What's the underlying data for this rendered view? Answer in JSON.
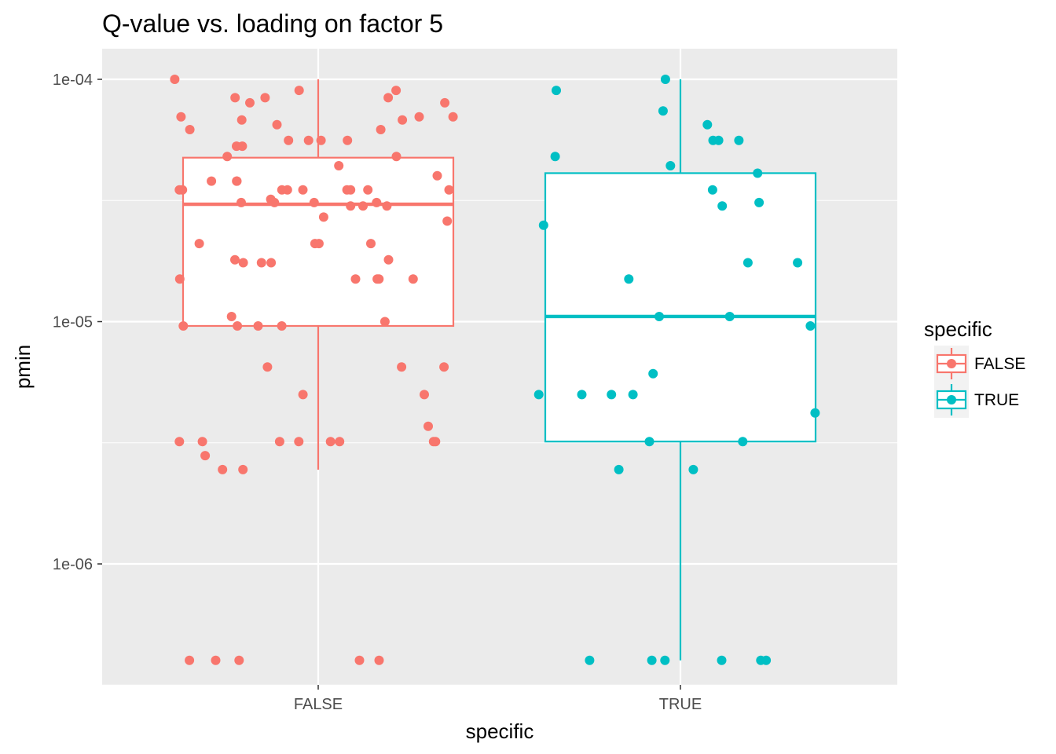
{
  "chart_data": {
    "type": "boxplot",
    "title": "Q-value vs. loading on factor 5",
    "xlabel": "specific",
    "ylabel": "pmin",
    "y_scale": "log10",
    "ylim": [
      2.8e-07,
      0.00015
    ],
    "grid": true,
    "legend": {
      "title": "specific",
      "placement": "right"
    },
    "categories": [
      "FALSE",
      "TRUE"
    ],
    "y_ticks": [
      {
        "value": 0.0001,
        "label": "1e-04"
      },
      {
        "value": 1e-05,
        "label": "1e-05"
      },
      {
        "value": 1e-06,
        "label": "1e-06"
      }
    ],
    "series": [
      {
        "name": "FALSE",
        "color": "#f8766d",
        "box": {
          "whisker_low": 2.45e-06,
          "q1": 9.6e-06,
          "median": 3.05e-05,
          "q3": 4.75e-05,
          "whisker_high": 0.0001
        },
        "points": [
          [
            0.0,
            0.0001
          ],
          [
            0.0,
            9e-05
          ],
          [
            0.0,
            9e-05
          ],
          [
            0.0,
            8.4e-05
          ],
          [
            0.0,
            8.4e-05
          ],
          [
            0.0,
            8.4e-05
          ],
          [
            0.0,
            8e-05
          ],
          [
            0.0,
            8e-05
          ],
          [
            0.0,
            7e-05
          ],
          [
            0.0,
            7e-05
          ],
          [
            0.0,
            7e-05
          ],
          [
            0.0,
            6.8e-05
          ],
          [
            0.0,
            6.8e-05
          ],
          [
            0.0,
            6.5e-05
          ],
          [
            0.0,
            6.2e-05
          ],
          [
            0.0,
            6.2e-05
          ],
          [
            0.0,
            5.6e-05
          ],
          [
            0.0,
            5.6e-05
          ],
          [
            0.0,
            5.6e-05
          ],
          [
            0.0,
            5.6e-05
          ],
          [
            0.0,
            5.3e-05
          ],
          [
            0.0,
            5.3e-05
          ],
          [
            0.0,
            4.8e-05
          ],
          [
            0.0,
            4.8e-05
          ],
          [
            0.0,
            4.4e-05
          ],
          [
            0.0,
            4e-05
          ],
          [
            0.0,
            3.8e-05
          ],
          [
            0.0,
            3.8e-05
          ],
          [
            0.0,
            3.8e-05
          ],
          [
            0.0,
            3.5e-05
          ],
          [
            0.0,
            3.5e-05
          ],
          [
            0.0,
            3.5e-05
          ],
          [
            0.0,
            3.5e-05
          ],
          [
            0.0,
            3.5e-05
          ],
          [
            0.0,
            3.5e-05
          ],
          [
            0.0,
            3.5e-05
          ],
          [
            0.0,
            3.5e-05
          ],
          [
            0.0,
            3.5e-05
          ],
          [
            0.0,
            3.2e-05
          ],
          [
            0.0,
            3.1e-05
          ],
          [
            0.0,
            3.1e-05
          ],
          [
            0.0,
            3.1e-05
          ],
          [
            0.0,
            3.1e-05
          ],
          [
            0.0,
            3e-05
          ],
          [
            0.0,
            3e-05
          ],
          [
            0.0,
            3e-05
          ],
          [
            0.0,
            2.7e-05
          ],
          [
            0.0,
            2.6e-05
          ],
          [
            0.0,
            2.1e-05
          ],
          [
            0.0,
            2.1e-05
          ],
          [
            0.0,
            2.1e-05
          ],
          [
            0.0,
            2.1e-05
          ],
          [
            0.0,
            1.8e-05
          ],
          [
            0.0,
            1.8e-05
          ],
          [
            0.0,
            1.75e-05
          ],
          [
            0.0,
            1.75e-05
          ],
          [
            0.0,
            1.75e-05
          ],
          [
            0.0,
            1.5e-05
          ],
          [
            0.0,
            1.5e-05
          ],
          [
            0.0,
            1.5e-05
          ],
          [
            0.0,
            1.5e-05
          ],
          [
            0.0,
            1.5e-05
          ],
          [
            0.0,
            1.05e-05
          ],
          [
            0.0,
            1e-05
          ],
          [
            0.0,
            9.6e-06
          ],
          [
            0.0,
            9.6e-06
          ],
          [
            0.0,
            9.6e-06
          ],
          [
            0.0,
            9.6e-06
          ],
          [
            0.0,
            6.5e-06
          ],
          [
            0.0,
            6.5e-06
          ],
          [
            0.0,
            6.5e-06
          ],
          [
            0.0,
            5e-06
          ],
          [
            0.0,
            5e-06
          ],
          [
            0.0,
            3.7e-06
          ],
          [
            0.0,
            3.2e-06
          ],
          [
            0.0,
            3.2e-06
          ],
          [
            0.0,
            3.2e-06
          ],
          [
            0.0,
            3.2e-06
          ],
          [
            0.0,
            3.2e-06
          ],
          [
            0.0,
            3.2e-06
          ],
          [
            0.0,
            3.2e-06
          ],
          [
            0.0,
            3.2e-06
          ],
          [
            0.0,
            2.8e-06
          ],
          [
            0.0,
            2.45e-06
          ],
          [
            0.0,
            2.45e-06
          ],
          [
            0.0,
            4e-07
          ],
          [
            0.0,
            4e-07
          ],
          [
            0.0,
            4e-07
          ],
          [
            0.0,
            4e-07
          ],
          [
            0.0,
            4e-07
          ]
        ]
      },
      {
        "name": "TRUE",
        "color": "#00bfc4",
        "box": {
          "whisker_low": 4e-07,
          "q1": 3.2e-06,
          "median": 1.05e-05,
          "q3": 4.1e-05,
          "whisker_high": 0.0001
        },
        "points": [
          [
            1.0,
            0.0001
          ],
          [
            1.0,
            9e-05
          ],
          [
            1.0,
            7.4e-05
          ],
          [
            1.0,
            6.5e-05
          ],
          [
            1.0,
            5.6e-05
          ],
          [
            1.0,
            5.6e-05
          ],
          [
            1.0,
            5.6e-05
          ],
          [
            1.0,
            4.8e-05
          ],
          [
            1.0,
            4.4e-05
          ],
          [
            1.0,
            4.1e-05
          ],
          [
            1.0,
            3.5e-05
          ],
          [
            1.0,
            3.1e-05
          ],
          [
            1.0,
            3e-05
          ],
          [
            1.0,
            2.5e-05
          ],
          [
            1.0,
            1.75e-05
          ],
          [
            1.0,
            1.75e-05
          ],
          [
            1.0,
            1.5e-05
          ],
          [
            1.0,
            1.05e-05
          ],
          [
            1.0,
            1.05e-05
          ],
          [
            1.0,
            9.6e-06
          ],
          [
            1.0,
            6.1e-06
          ],
          [
            1.0,
            5e-06
          ],
          [
            1.0,
            5e-06
          ],
          [
            1.0,
            5e-06
          ],
          [
            1.0,
            5e-06
          ],
          [
            1.0,
            4.2e-06
          ],
          [
            1.0,
            3.2e-06
          ],
          [
            1.0,
            3.2e-06
          ],
          [
            1.0,
            2.45e-06
          ],
          [
            1.0,
            2.45e-06
          ],
          [
            1.0,
            4e-07
          ],
          [
            1.0,
            4e-07
          ],
          [
            1.0,
            4e-07
          ],
          [
            1.0,
            4e-07
          ],
          [
            1.0,
            4e-07
          ],
          [
            1.0,
            4e-07
          ]
        ]
      }
    ]
  }
}
